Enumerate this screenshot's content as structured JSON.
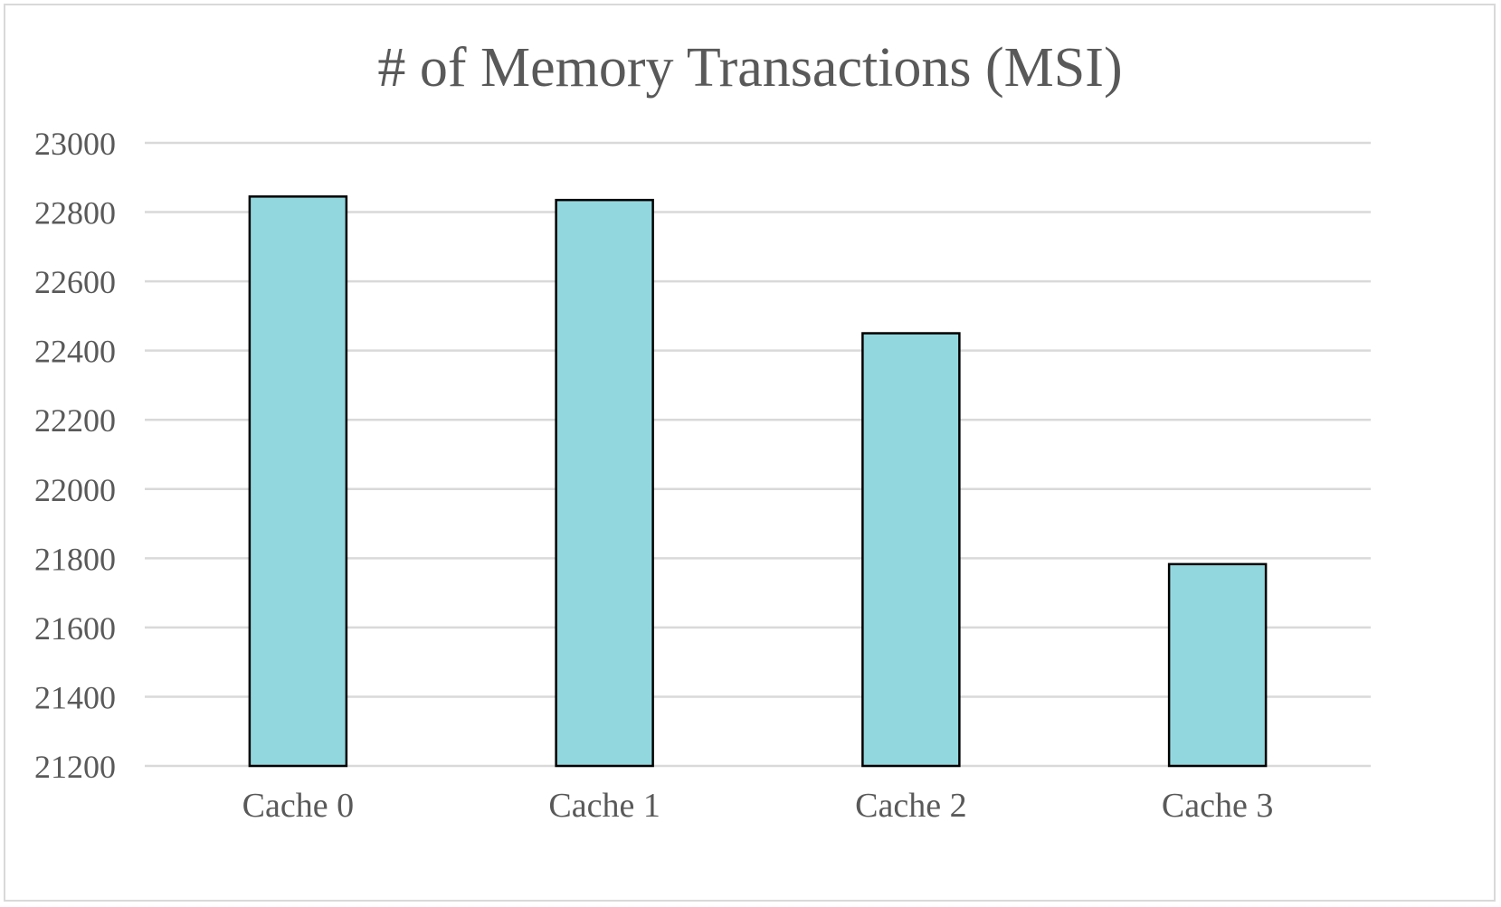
{
  "chart_data": {
    "type": "bar",
    "title": "# of Memory Transactions (MSI)",
    "xlabel": "",
    "ylabel": "",
    "categories": [
      "Cache 0",
      "Cache 1",
      "Cache 2",
      "Cache 3"
    ],
    "series": [
      {
        "values": [
          22845,
          22835,
          22450,
          21783
        ],
        "color": "#92d7de"
      }
    ],
    "ylim": [
      21200,
      23000
    ],
    "yticks": [
      "21200",
      "21400",
      "21600",
      "21800",
      "22000",
      "22200",
      "22400",
      "22600",
      "22800",
      "23000"
    ],
    "grid": true,
    "legend": "none",
    "colors": {
      "bar_fill": "#92d7de",
      "bar_stroke": "#000000",
      "gridline": "#d9d9d9",
      "text": "#595959",
      "frame": "#d9d9d9"
    }
  }
}
